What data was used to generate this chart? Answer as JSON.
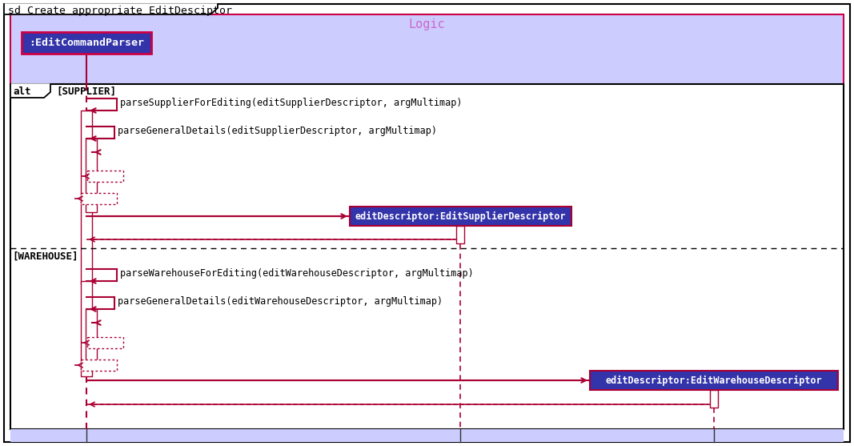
{
  "title": "sd Create appropriate EditDesciptor",
  "logic_label": "Logic",
  "actor_label": ":EditCommandParser",
  "supplier_descriptor_label": "editDescriptor:EditSupplierDescriptor",
  "warehouse_descriptor_label": "editDescriptor:EditWarehouseDescriptor",
  "alt_label": "alt",
  "supplier_guard": "[SUPPLIER]",
  "warehouse_guard": "[WAREHOUSE]",
  "msg1": "parseSupplierForEditing(editSupplierDescriptor, argMultimap)",
  "msg2": "parseGeneralDetails(editSupplierDescriptor, argMultimap)",
  "msg3": "parseWarehouseForEditing(editWarehouseDescriptor, argMultimap)",
  "msg4": "parseGeneralDetails(editWarehouseDescriptor, argMultimap)",
  "bg_outer": "#ffffff",
  "bg_logic": "#ccccff",
  "bg_logic_border": "#cc0044",
  "bg_actor": "#3333aa",
  "bg_actor_text": "#ffffff",
  "bg_descriptor": "#3333aa",
  "bg_descriptor_text": "#ffffff",
  "alt_border": "#000000",
  "line_color": "#aa0033",
  "dashed_line_color": "#aa0033",
  "text_color": "#000000",
  "font_mono": "monospace",
  "logic_label_color": "#cc66cc"
}
